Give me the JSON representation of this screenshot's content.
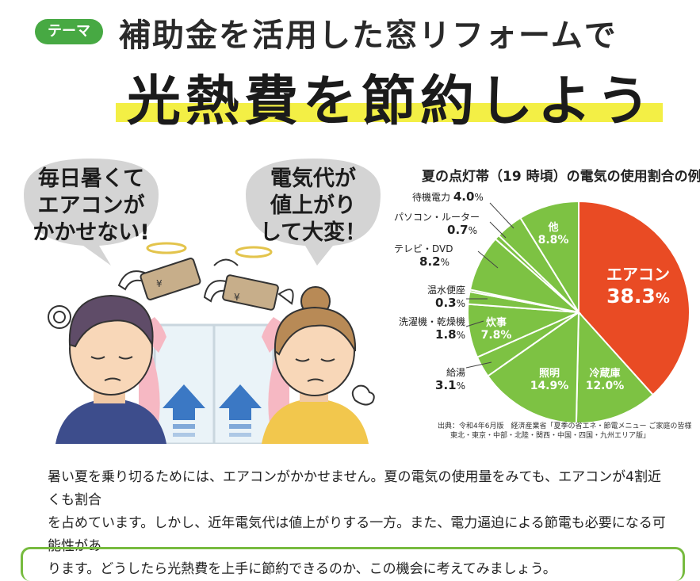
{
  "header": {
    "tag": "テーマ",
    "title_line1": "補助金を活用した窓リフォームで",
    "title_line2": "光熱費を節約しよう"
  },
  "illustration": {
    "bubble_left": [
      "毎日暑くて",
      "エアコンが",
      "かかせない!"
    ],
    "bubble_right": [
      "電気代が",
      "値上がり",
      "して大変！"
    ]
  },
  "chart_data": {
    "type": "pie",
    "title": "夏の点灯帯（19 時頃）の電気の使用割合の例",
    "unit": "%",
    "slices": [
      {
        "label": "エアコン",
        "value": 38.3,
        "color": "#e94b24"
      },
      {
        "label": "冷蔵庫",
        "value": 12.0,
        "color": "#7dc243"
      },
      {
        "label": "照明",
        "value": 14.9,
        "color": "#7dc243"
      },
      {
        "label": "給湯",
        "value": 3.1,
        "color": "#7dc243"
      },
      {
        "label": "炊事",
        "value": 7.8,
        "color": "#7dc243"
      },
      {
        "label": "洗濯機・乾燥機",
        "value": 1.8,
        "color": "#7dc243"
      },
      {
        "label": "温水便座",
        "value": 0.3,
        "color": "#7dc243"
      },
      {
        "label": "テレビ・DVD",
        "value": 8.2,
        "color": "#7dc243"
      },
      {
        "label": "パソコン・ルーター",
        "value": 0.7,
        "color": "#7dc243"
      },
      {
        "label": "待機電力",
        "value": 4.0,
        "color": "#7dc243"
      },
      {
        "label": "他",
        "value": 8.8,
        "color": "#7dc243"
      }
    ],
    "labels": {
      "aircon_name": "エアコン",
      "aircon_value": "38.3",
      "fridge_name": "冷蔵庫",
      "fridge_value": "12.0",
      "light_name": "照明",
      "light_value": "14.9",
      "kitchen_name": "炊事",
      "kitchen_value": "7.8",
      "other_name": "他",
      "other_value": "8.8",
      "standby_name": "待機電力",
      "standby_value": "4.0",
      "pc_name": "パソコン・ルーター",
      "pc_value": "0.7",
      "tv_name": "テレビ・DVD",
      "tv_value": "8.2",
      "toilet_name": "温水便座",
      "toilet_value": "0.3",
      "laundry_name": "洗濯機・乾燥機",
      "laundry_value": "1.8",
      "water_name": "給湯",
      "water_value": "3.1",
      "pct": "%"
    },
    "source_line1": "出典：令和4年6月版　経済産業省「夏季の省エネ・節電メニュー ご家庭の皆様",
    "source_line2": "東北・東京・中部・北陸・関西・中国・四国・九州エリア版」"
  },
  "colors": {
    "accent_green": "#47a943",
    "pie_green": "#7dc243",
    "pie_orange": "#e94b24",
    "highlight_yellow": "#f3ef45"
  },
  "body_text": {
    "line1": "暑い夏を乗り切るためには、エアコンがかかせません。夏の電気の使用量をみても、エアコンが4割近くも割合",
    "line2": "を占めています。しかし、近年電気代は値上がりする一方。また、電力逼迫による節電も必要になる可能性があ",
    "line3": "ります。どうしたら光熱費を上手に節約できるのか、この機会に考えてみましょう。"
  }
}
